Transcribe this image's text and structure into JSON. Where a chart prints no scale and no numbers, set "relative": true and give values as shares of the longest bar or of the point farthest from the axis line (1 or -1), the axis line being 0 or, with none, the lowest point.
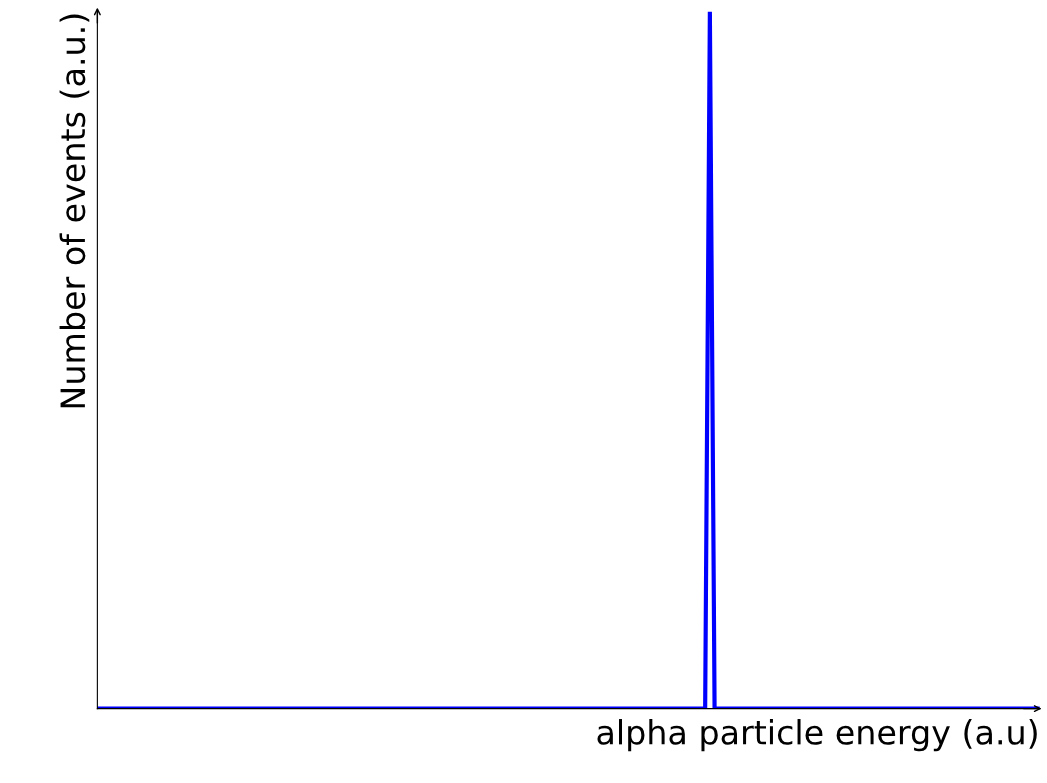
{
  "chart_data": {
    "type": "line",
    "relative": true,
    "xlabel": "alpha particle energy (a.u)",
    "ylabel": "Number of events (a.u.)",
    "categories": [
      null,
      null,
      null,
      null,
      null,
      null,
      null,
      null,
      null,
      null,
      null,
      null,
      null,
      null,
      null,
      null,
      null,
      null,
      null,
      null,
      null,
      null,
      null,
      null,
      null,
      null,
      null,
      null,
      null,
      null,
      null,
      null,
      null,
      null,
      null,
      null,
      null,
      null,
      null,
      null,
      null,
      null,
      null,
      null,
      null,
      null,
      null,
      null,
      null,
      null,
      null,
      null,
      null,
      null,
      null,
      null,
      null,
      null,
      null,
      null,
      null,
      null,
      null,
      null,
      null,
      null,
      null,
      null,
      null,
      null,
      null,
      null,
      null,
      null,
      null,
      null,
      null,
      null,
      null,
      null,
      null,
      null,
      null,
      null,
      null,
      null,
      null,
      null,
      null,
      null,
      null,
      null,
      null,
      null,
      null,
      null,
      null,
      null,
      null,
      null,
      null,
      null,
      null,
      null,
      null,
      null,
      null,
      null,
      null,
      null,
      null,
      null,
      null,
      null,
      null,
      null,
      null,
      null,
      null,
      null,
      null,
      null,
      null,
      null,
      null,
      null,
      null,
      null,
      null,
      null,
      null,
      null,
      null,
      null,
      null,
      null,
      null,
      null,
      null,
      null,
      null,
      null,
      null,
      null,
      null,
      null,
      null,
      null,
      null,
      null,
      null,
      null,
      null,
      null,
      null,
      null,
      null,
      null,
      null,
      null,
      null,
      null,
      null,
      null,
      null,
      null,
      null,
      null,
      null,
      null,
      null,
      null,
      null,
      null,
      null,
      null,
      null,
      null,
      null,
      null,
      null,
      null,
      null,
      null,
      null,
      null,
      null,
      null,
      null,
      null,
      null,
      null,
      null,
      null,
      null,
      null,
      null,
      null,
      null,
      null,
      null
    ],
    "values": [
      0,
      0,
      0,
      0,
      0,
      0,
      0,
      0,
      0,
      0,
      0,
      0,
      0,
      0,
      0,
      0,
      0,
      0,
      0,
      0,
      0,
      0,
      0,
      0,
      0,
      0,
      0,
      0,
      0,
      0,
      0,
      0,
      0,
      0,
      0,
      0,
      0,
      0,
      0,
      0,
      0,
      0,
      0,
      0,
      0,
      0,
      0,
      0,
      0,
      0,
      0,
      0,
      0,
      0,
      0,
      0,
      0,
      0,
      0,
      0,
      0,
      0,
      0,
      0,
      0,
      0,
      0,
      0,
      0,
      0,
      0,
      0,
      0,
      0,
      0,
      0,
      0,
      0,
      0,
      0,
      0,
      0,
      0,
      0,
      0,
      0,
      0,
      0,
      0,
      0,
      0,
      0,
      0,
      0,
      0,
      0,
      0,
      0,
      0,
      0,
      0,
      0,
      0,
      0,
      0,
      0,
      0,
      0,
      0,
      0,
      0,
      0,
      0,
      0,
      0,
      0,
      0,
      0,
      0,
      0,
      0,
      0,
      0,
      0,
      0,
      0,
      0,
      0,
      0,
      0,
      1,
      0,
      0,
      0,
      0,
      0,
      0,
      0,
      0,
      0,
      0,
      0,
      0,
      0,
      0,
      0,
      0,
      0,
      0,
      0,
      0,
      0,
      0,
      0,
      0,
      0,
      0,
      0,
      0,
      0,
      0,
      0,
      0,
      0,
      0,
      0,
      0,
      0,
      0,
      0,
      0,
      0,
      0,
      0,
      0,
      0,
      0,
      0,
      0,
      0,
      0,
      0,
      0,
      0,
      0,
      0,
      0,
      0,
      0,
      0,
      0,
      0,
      0,
      0,
      0,
      0,
      0,
      0,
      0,
      0,
      0
    ],
    "color": "#0000ff",
    "marker": "none",
    "line_style": "solid"
  }
}
